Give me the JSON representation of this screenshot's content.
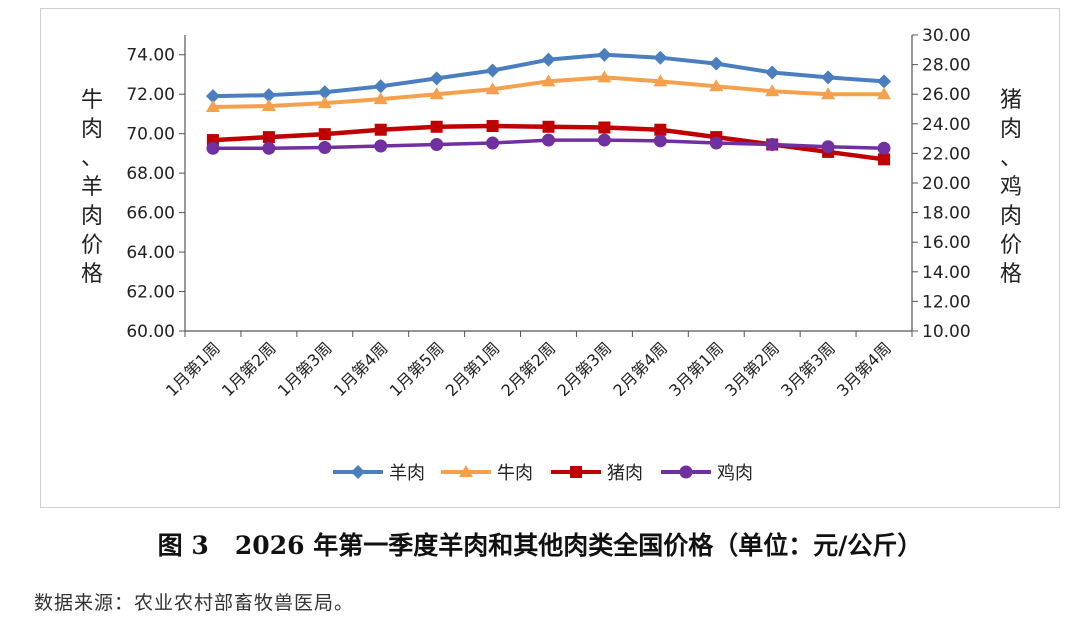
{
  "chart_data": {
    "type": "line",
    "categories": [
      "1月第1周",
      "1月第2周",
      "1月第3周",
      "1月第4周",
      "1月第5周",
      "2月第1周",
      "2月第2周",
      "2月第3周",
      "2月第4周",
      "3月第1周",
      "3月第2周",
      "3月第3周",
      "3月第4周"
    ],
    "ylabel_left": "牛肉、羊肉价格",
    "ylabel_right": "猪肉、鸡肉价格",
    "ylim_left": [
      60,
      75
    ],
    "ylim_right": [
      10,
      30
    ],
    "yticks_left": [
      "60.00",
      "62.00",
      "64.00",
      "66.00",
      "68.00",
      "70.00",
      "72.00",
      "74.00"
    ],
    "yticks_right": [
      "10.00",
      "12.00",
      "14.00",
      "16.00",
      "18.00",
      "20.00",
      "22.00",
      "24.00",
      "26.00",
      "28.00",
      "30.00"
    ],
    "legend_position": "bottom",
    "series": [
      {
        "name": "羊肉",
        "axis": "left",
        "color": "#4a7ebf",
        "marker": "diamond",
        "values": [
          71.9,
          71.95,
          72.1,
          72.4,
          72.8,
          73.2,
          73.75,
          74.0,
          73.85,
          73.55,
          73.1,
          72.85,
          72.65
        ]
      },
      {
        "name": "牛肉",
        "axis": "left",
        "color": "#f5a04c",
        "marker": "triangle",
        "values": [
          71.35,
          71.4,
          71.55,
          71.75,
          72.0,
          72.25,
          72.65,
          72.85,
          72.65,
          72.4,
          72.15,
          72.0,
          72.0
        ]
      },
      {
        "name": "猪肉",
        "axis": "right",
        "color": "#c00000",
        "marker": "square",
        "values": [
          22.9,
          23.1,
          23.3,
          23.6,
          23.8,
          23.85,
          23.8,
          23.75,
          23.6,
          23.1,
          22.6,
          22.1,
          21.6
        ]
      },
      {
        "name": "鸡肉",
        "axis": "right",
        "color": "#7030a0",
        "marker": "circle",
        "values": [
          22.35,
          22.35,
          22.4,
          22.5,
          22.6,
          22.7,
          22.9,
          22.9,
          22.85,
          22.7,
          22.6,
          22.45,
          22.35
        ]
      }
    ]
  },
  "caption": {
    "figure_no": "图 3",
    "title": "2026 年第一季度羊肉和其他肉类全国价格（单位：元/公斤）"
  },
  "source": "数据来源：农业农村部畜牧兽医局。"
}
